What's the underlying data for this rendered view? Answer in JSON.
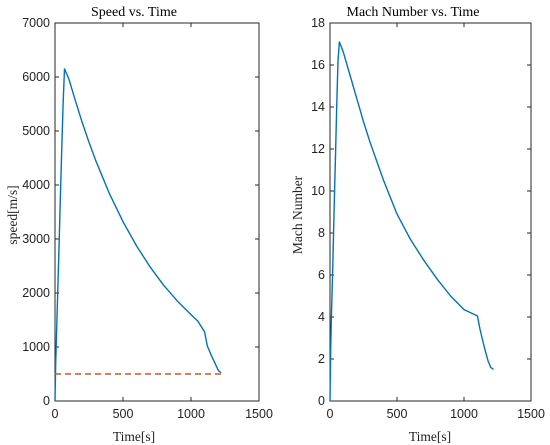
{
  "chart_data": [
    {
      "type": "line",
      "title": "Speed vs. Time",
      "xlabel": "Time[s]",
      "ylabel": "speed[m/s]",
      "xlim": [
        0,
        1500
      ],
      "ylim": [
        0,
        7000
      ],
      "xticks": [
        0,
        500,
        1000,
        1500
      ],
      "yticks": [
        0,
        1000,
        2000,
        3000,
        4000,
        5000,
        6000,
        7000
      ],
      "grid": false,
      "series": [
        {
          "color": "#0072BD",
          "style": "solid",
          "x": [
            0,
            5,
            10,
            20,
            30,
            40,
            50,
            60,
            70,
            100,
            150,
            200,
            250,
            300,
            400,
            500,
            600,
            700,
            800,
            900,
            1000,
            1050,
            1100,
            1120,
            1150,
            1180,
            1200,
            1220
          ],
          "y": [
            0,
            700,
            1150,
            2000,
            2900,
            3800,
            4700,
            5550,
            6150,
            5980,
            5560,
            5160,
            4790,
            4450,
            3840,
            3320,
            2870,
            2480,
            2140,
            1850,
            1600,
            1480,
            1280,
            1020,
            840,
            680,
            570,
            520
          ]
        },
        {
          "color": "#D95319",
          "style": "dashed",
          "x": [
            0,
            1220
          ],
          "y": [
            500,
            500
          ]
        }
      ]
    },
    {
      "type": "line",
      "title": "Mach Number vs. Time",
      "xlabel": "Time[s]",
      "ylabel": "Mach Number",
      "xlim": [
        0,
        1500
      ],
      "ylim": [
        0,
        18
      ],
      "xticks": [
        0,
        500,
        1000,
        1500
      ],
      "yticks": [
        0,
        2,
        4,
        6,
        8,
        10,
        12,
        14,
        16,
        18
      ],
      "grid": false,
      "series": [
        {
          "color": "#0072BD",
          "style": "solid",
          "x": [
            0,
            5,
            10,
            20,
            30,
            40,
            50,
            60,
            70,
            100,
            150,
            200,
            250,
            300,
            400,
            500,
            600,
            700,
            800,
            900,
            1000,
            1050,
            1100,
            1120,
            1150,
            1180,
            1200,
            1220
          ],
          "y": [
            0,
            2.5,
            3.8,
            6.3,
            8.9,
            11.5,
            14.0,
            16.2,
            17.1,
            16.6,
            15.5,
            14.4,
            13.3,
            12.3,
            10.5,
            8.9,
            7.7,
            6.7,
            5.8,
            5.0,
            4.35,
            4.2,
            4.05,
            3.4,
            2.6,
            1.9,
            1.6,
            1.5
          ]
        }
      ]
    }
  ]
}
